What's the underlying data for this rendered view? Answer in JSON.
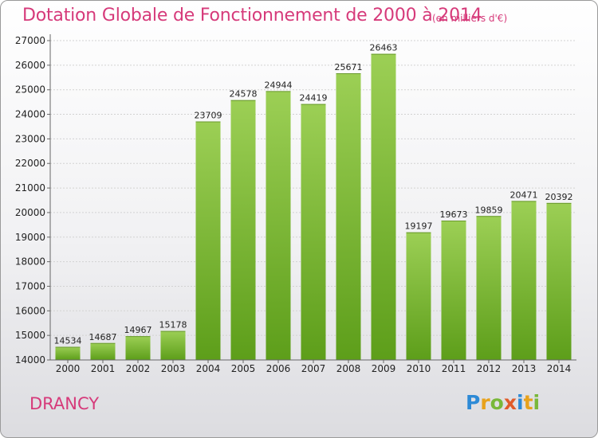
{
  "header": {
    "title": "Dotation Globale de Fonctionnement de 2000 à 2014",
    "subtitle": "(en milliers d'€)"
  },
  "footer": {
    "commune": "DRANCY",
    "logo_letters": [
      "P",
      "r",
      "o",
      "x",
      "i",
      "t",
      "i"
    ]
  },
  "colors": {
    "title": "#d63a7a",
    "bar_top": "#9ccf55",
    "bar_bottom": "#5d9e1a"
  },
  "chart_data": {
    "type": "bar",
    "title": "Dotation Globale de Fonctionnement de 2000 à 2014",
    "subtitle": "(en milliers d'€)",
    "categories": [
      "2000",
      "2001",
      "2002",
      "2003",
      "2004",
      "2005",
      "2006",
      "2007",
      "2008",
      "2009",
      "2010",
      "2011",
      "2012",
      "2013",
      "2014"
    ],
    "values": [
      14534,
      14687,
      14967,
      15178,
      23709,
      24578,
      24944,
      24419,
      25671,
      26463,
      19197,
      19673,
      19859,
      20471,
      20392
    ],
    "ylim": [
      14000,
      27000
    ],
    "yticks": [
      14000,
      15000,
      16000,
      17000,
      18000,
      19000,
      20000,
      21000,
      22000,
      23000,
      24000,
      25000,
      26000,
      27000
    ],
    "grid": true,
    "legend": "none"
  }
}
